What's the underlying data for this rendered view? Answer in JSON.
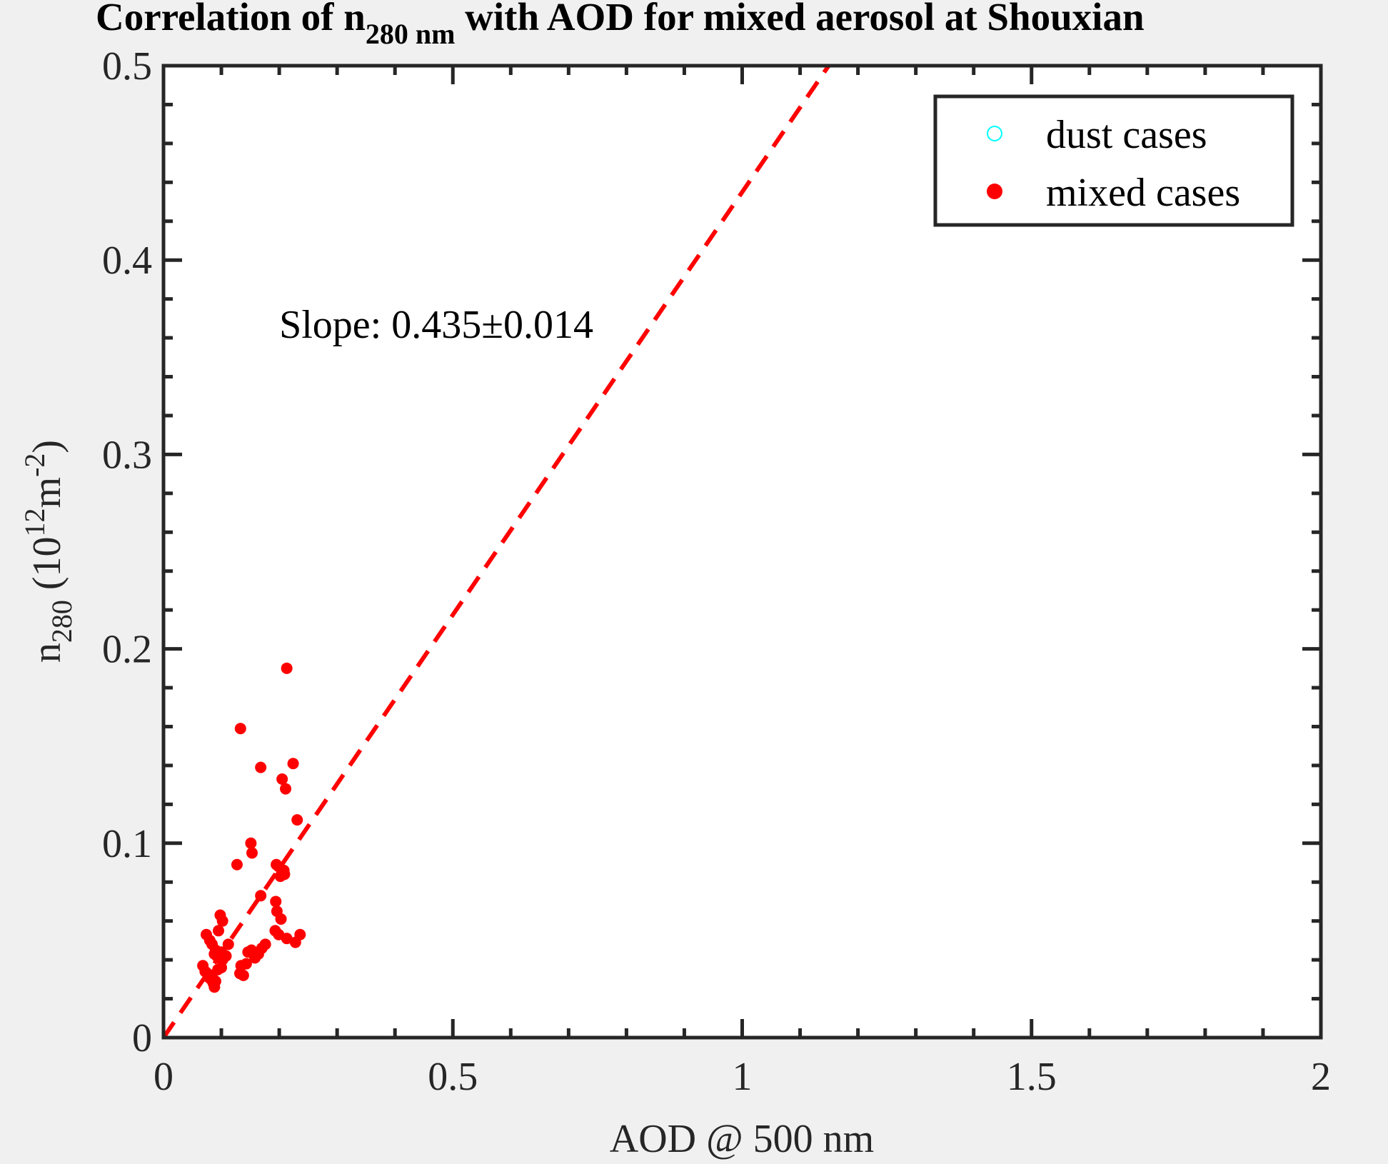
{
  "chart_data": {
    "type": "scatter",
    "title": {
      "main_prefix": "Correlation of n",
      "main_subscript": "280 nm",
      "main_suffix": " with AOD for mixed aerosol at Shouxian"
    },
    "xlabel": "AOD @ 500 nm",
    "ylabel": {
      "base": "n",
      "subscript": "280",
      "unit_open": " (10",
      "unit_sup1": "12",
      "unit_mid": "m",
      "unit_sup2": "-2",
      "unit_close": ")"
    },
    "xlim": [
      0,
      2
    ],
    "ylim": [
      0,
      0.5
    ],
    "xticks": [
      0,
      0.5,
      1,
      1.5,
      2
    ],
    "xtick_labels": [
      "0",
      "0.5",
      "1",
      "1.5",
      "2"
    ],
    "yticks": [
      0,
      0.1,
      0.2,
      0.3,
      0.4,
      0.5
    ],
    "ytick_labels": [
      "0",
      "0.1",
      "0.2",
      "0.3",
      "0.4",
      "0.5"
    ],
    "x_minor_step": 0.1,
    "y_minor_step": 0.02,
    "grid": false,
    "legend": {
      "placement": "top-right",
      "entries": [
        {
          "label": "dust cases",
          "marker": "open-circle",
          "color": "#00ffff"
        },
        {
          "label": "mixed cases",
          "marker": "filled-circle",
          "color": "#ff0000"
        }
      ]
    },
    "annotation": {
      "text": "Slope: 0.435±0.014",
      "x": 0.2,
      "y": 0.36
    },
    "fit_line": {
      "slope": 0.435,
      "intercept": 0,
      "style": "dashed",
      "color": "#ff0000"
    },
    "series": [
      {
        "name": "dust cases",
        "marker": "open-circle",
        "color": "#00ffff",
        "x": [],
        "y": []
      },
      {
        "name": "mixed cases",
        "marker": "filled-circle",
        "color": "#ff0000",
        "x": [
          0.213,
          0.133,
          0.168,
          0.224,
          0.205,
          0.211,
          0.231,
          0.151,
          0.153,
          0.127,
          0.195,
          0.199,
          0.205,
          0.208,
          0.202,
          0.209,
          0.168,
          0.194,
          0.196,
          0.203,
          0.193,
          0.199,
          0.213,
          0.228,
          0.236,
          0.098,
          0.102,
          0.095,
          0.074,
          0.08,
          0.084,
          0.09,
          0.088,
          0.092,
          0.096,
          0.1,
          0.102,
          0.108,
          0.112,
          0.068,
          0.072,
          0.076,
          0.078,
          0.082,
          0.086,
          0.09,
          0.094,
          0.1,
          0.088,
          0.084,
          0.146,
          0.152,
          0.158,
          0.164,
          0.17,
          0.176,
          0.134,
          0.138,
          0.143,
          0.132
        ],
        "y": [
          0.19,
          0.159,
          0.139,
          0.141,
          0.133,
          0.128,
          0.112,
          0.1,
          0.095,
          0.089,
          0.089,
          0.088,
          0.085,
          0.086,
          0.083,
          0.084,
          0.073,
          0.07,
          0.065,
          0.061,
          0.055,
          0.053,
          0.051,
          0.049,
          0.053,
          0.063,
          0.06,
          0.055,
          0.053,
          0.05,
          0.048,
          0.045,
          0.043,
          0.042,
          0.041,
          0.044,
          0.04,
          0.042,
          0.048,
          0.037,
          0.034,
          0.033,
          0.031,
          0.03,
          0.028,
          0.029,
          0.035,
          0.036,
          0.026,
          0.032,
          0.044,
          0.045,
          0.041,
          0.043,
          0.046,
          0.048,
          0.037,
          0.032,
          0.038,
          0.033
        ]
      }
    ]
  }
}
